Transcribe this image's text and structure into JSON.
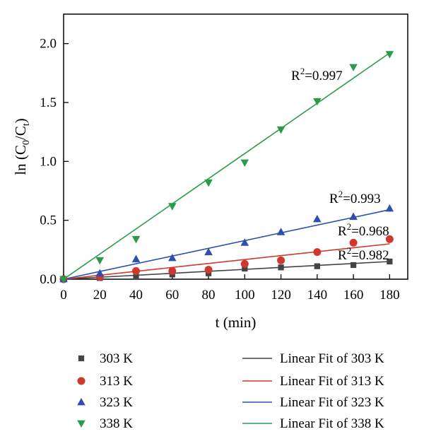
{
  "chart_data": {
    "type": "scatter",
    "xlabel": "t (min)",
    "ylabel": {
      "main": "ln (C",
      "sub0": "0",
      "mid": "/C",
      "sub1": "t",
      "end": ")"
    },
    "xlim": [
      0,
      190
    ],
    "ylim": [
      0,
      2.25
    ],
    "xticks": [
      0,
      20,
      40,
      60,
      80,
      100,
      120,
      140,
      160,
      180
    ],
    "yticks": [
      0.0,
      0.5,
      1.0,
      1.5,
      2.0
    ],
    "ytick_labels": [
      "0.0",
      "0.5",
      "1.0",
      "1.5",
      "2.0"
    ],
    "grid": false,
    "legend_position": "bottom",
    "x": [
      0,
      20,
      40,
      60,
      80,
      100,
      120,
      140,
      160,
      180
    ],
    "series": [
      {
        "name": "303 K",
        "marker": "square",
        "color": "#444444",
        "values": [
          0.0,
          0.01,
          0.02,
          0.04,
          0.05,
          0.09,
          0.1,
          0.11,
          0.12,
          0.15
        ],
        "fit_name": "Linear Fit of 303 K",
        "fit_line": [
          [
            0,
            0.0
          ],
          [
            180,
            0.15
          ]
        ],
        "r2": "0.982"
      },
      {
        "name": "313 K",
        "marker": "circle",
        "color": "#d0382b",
        "values": [
          0.0,
          0.02,
          0.07,
          0.07,
          0.08,
          0.13,
          0.16,
          0.23,
          0.31,
          0.34
        ],
        "fit_name": "Linear Fit of 313 K",
        "fit_line": [
          [
            0,
            0.0
          ],
          [
            180,
            0.3
          ]
        ],
        "r2": "0.968"
      },
      {
        "name": "323 K",
        "marker": "triangle-up",
        "color": "#2c4fb0",
        "values": [
          0.0,
          0.05,
          0.17,
          0.18,
          0.23,
          0.31,
          0.4,
          0.51,
          0.53,
          0.6
        ],
        "fit_name": "Linear Fit of 323 K",
        "fit_line": [
          [
            0,
            0.0
          ],
          [
            180,
            0.59
          ]
        ],
        "r2": "0.993"
      },
      {
        "name": "338 K",
        "marker": "triangle-down",
        "color": "#2a9b4a",
        "values": [
          0.0,
          0.16,
          0.34,
          0.62,
          0.82,
          0.99,
          1.27,
          1.51,
          1.8,
          1.91
        ],
        "fit_name": "Linear Fit of 338 K",
        "fit_line": [
          [
            0,
            0.0
          ],
          [
            180,
            1.92
          ]
        ],
        "r2": "0.997"
      }
    ],
    "r2_label_prefix": "R",
    "r2_label_sup": "2",
    "r2_label_eq": "="
  }
}
